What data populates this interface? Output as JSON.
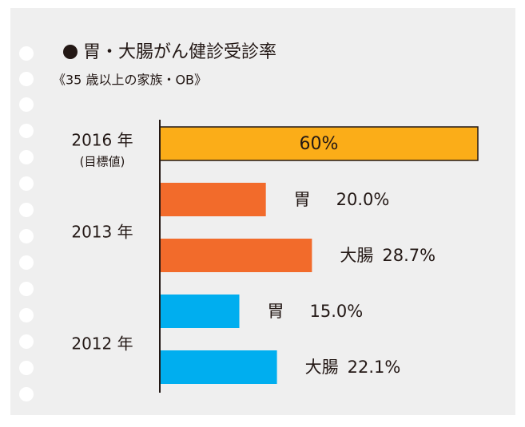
{
  "chart_data": {
    "type": "bar",
    "orientation": "horizontal",
    "title": "胃・大腸がん健診受診率",
    "subtitle": "《35 歳以上の家族・OB》",
    "xlim": [
      0,
      60
    ],
    "groups": [
      {
        "label": "2016 年",
        "note": "(目標値)",
        "bars": [
          {
            "value": 60,
            "value_label": "60%",
            "color": "#fbad18"
          }
        ]
      },
      {
        "label": "2013 年",
        "bars": [
          {
            "name": "胃",
            "value": 20.0,
            "value_label": "20.0%",
            "color": "#f26b2b"
          },
          {
            "name": "大腸",
            "value": 28.7,
            "value_label": "28.7%",
            "color": "#f26b2b"
          }
        ]
      },
      {
        "label": "2012 年",
        "bars": [
          {
            "name": "胃",
            "value": 15.0,
            "value_label": "15.0%",
            "color": "#00aeef"
          },
          {
            "name": "大腸",
            "value": 22.1,
            "value_label": "22.1%",
            "color": "#00aeef"
          }
        ]
      }
    ]
  }
}
